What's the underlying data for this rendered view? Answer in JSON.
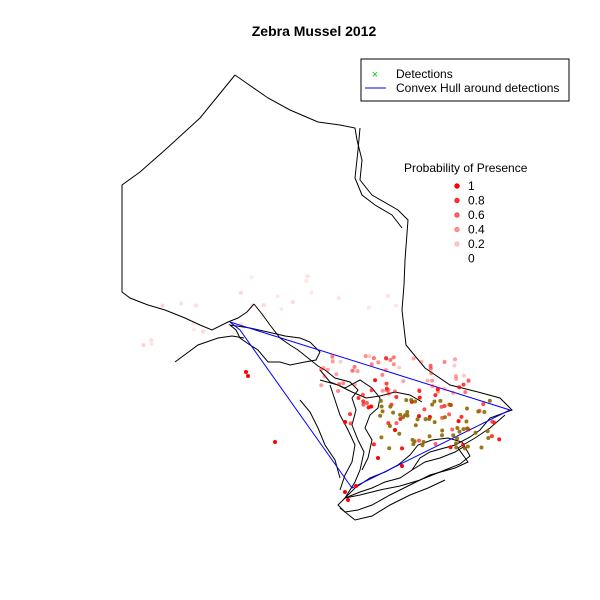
{
  "title": "Zebra Mussel 2012",
  "legend": {
    "entries": [
      {
        "label": "Detections",
        "symbol": "x-marker",
        "color": "#00cc00"
      },
      {
        "label": "Convex Hull around detections",
        "symbol": "line",
        "color": "#0000ff"
      }
    ]
  },
  "probability_legend": {
    "title": "Probability of Presence",
    "items": [
      {
        "label": "1",
        "value": 1.0
      },
      {
        "label": "0.8",
        "value": 0.8
      },
      {
        "label": "0.6",
        "value": 0.6
      },
      {
        "label": "0.4",
        "value": 0.4
      },
      {
        "label": "0.2",
        "value": 0.2
      },
      {
        "label": "0",
        "value": 0.0
      }
    ]
  },
  "colors": {
    "presence": "#ff0000",
    "detections": "#00cc00",
    "hull": "#0000ff",
    "outline": "#000000",
    "overlap_fill": "#8b6c00"
  }
}
